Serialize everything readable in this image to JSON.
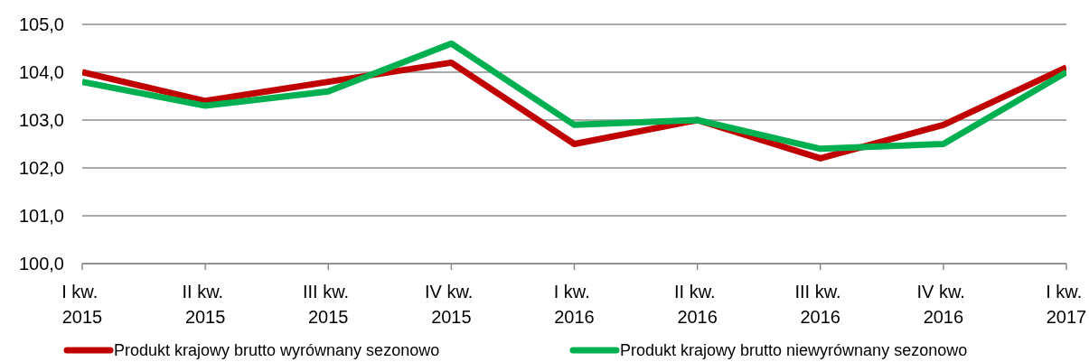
{
  "chart_data": {
    "type": "line",
    "categories": [
      "I kw. 2015",
      "II kw. 2015",
      "III kw. 2015",
      "IV kw. 2015",
      "I kw. 2016",
      "II kw. 2016",
      "III kw. 2016",
      "IV kw. 2016",
      "I kw. 2017"
    ],
    "series": [
      {
        "name": "Produkt krajowy brutto wyrównany sezonowo",
        "color": "#c00000",
        "values": [
          104.0,
          103.4,
          103.8,
          104.2,
          102.5,
          103.0,
          102.2,
          102.9,
          104.1
        ]
      },
      {
        "name": "Produkt krajowy brutto niewyrównany sezonowo",
        "color": "#00b050",
        "values": [
          103.8,
          103.3,
          103.6,
          104.6,
          102.9,
          103.0,
          102.4,
          102.5,
          104.0
        ]
      }
    ],
    "ylim": [
      100,
      105
    ],
    "yticks": [
      {
        "value": 100,
        "label": "100,0"
      },
      {
        "value": 101,
        "label": "101,0"
      },
      {
        "value": 102,
        "label": "102,0"
      },
      {
        "value": 103,
        "label": "103,0"
      },
      {
        "value": 104,
        "label": "104,0"
      },
      {
        "value": 105,
        "label": "105,0"
      }
    ],
    "grid": "y",
    "legend": "bottom"
  }
}
